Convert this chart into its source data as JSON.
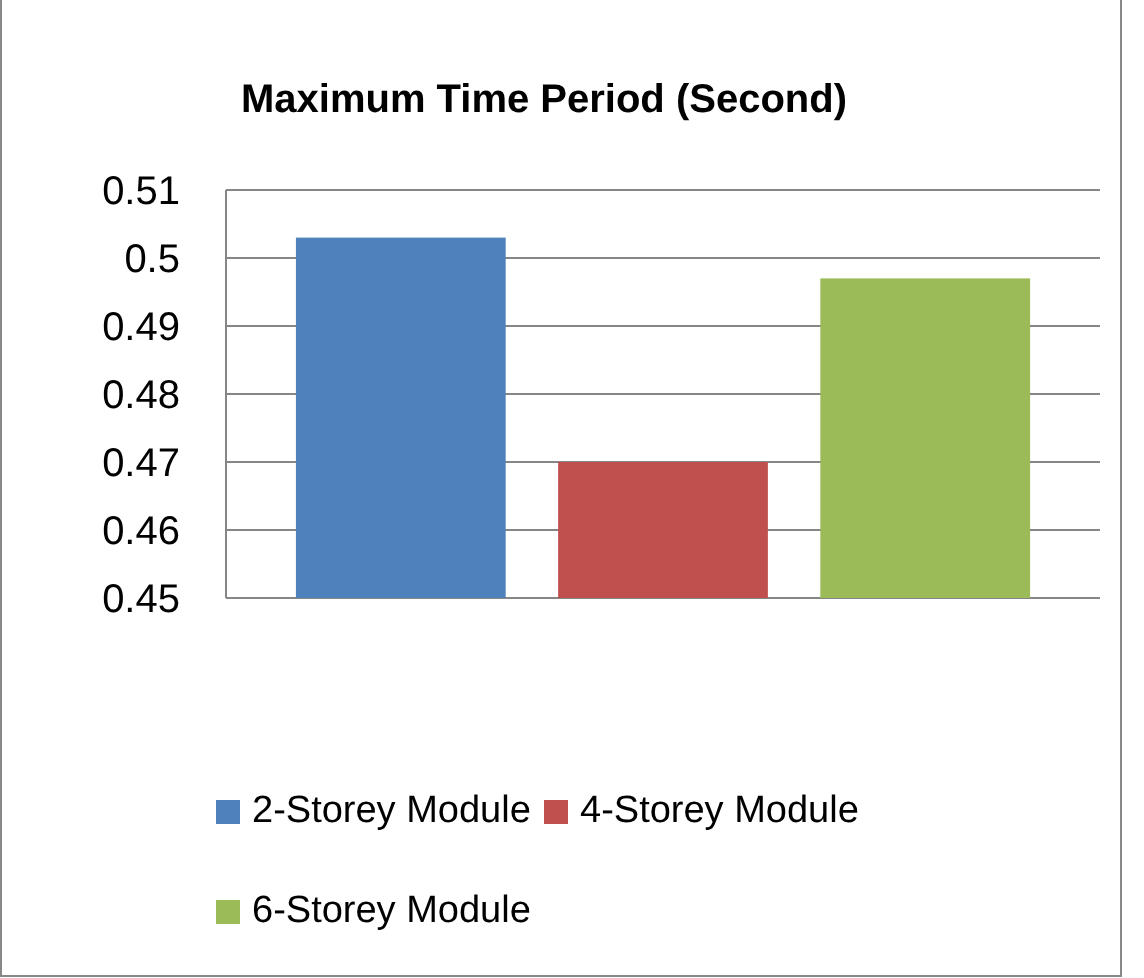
{
  "chart_data": {
    "type": "bar",
    "title": "Maximum Time Period (Second)",
    "categories": [
      null
    ],
    "series": [
      {
        "name": "2-Storey Module",
        "color": "#4f81bd",
        "values": [
          0.503
        ]
      },
      {
        "name": "4-Storey Module",
        "color": "#c0504d",
        "values": [
          0.47
        ]
      },
      {
        "name": "6-Storey Module",
        "color": "#9bbb59",
        "values": [
          0.497
        ]
      }
    ],
    "ylim": [
      0.45,
      0.51
    ],
    "yticks": [
      0.45,
      0.46,
      0.47,
      0.48,
      0.49,
      0.5,
      0.51
    ],
    "grid": "y",
    "legend": "bottom"
  }
}
